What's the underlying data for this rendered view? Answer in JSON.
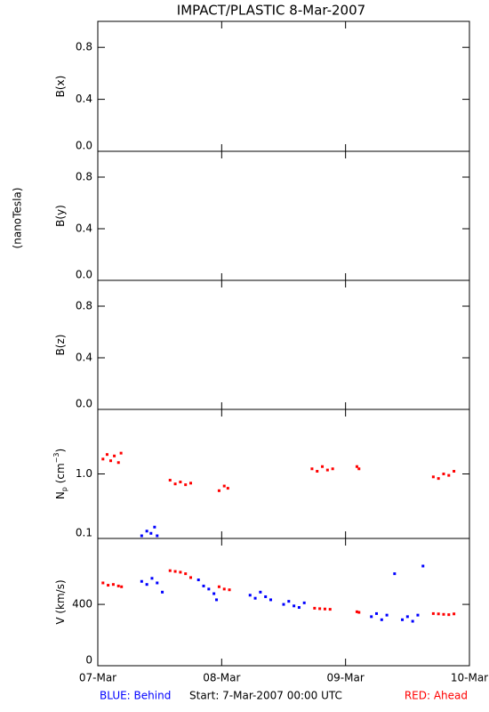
{
  "header": {
    "title": "IMPACT/PLASTIC    8-Mar-2007",
    "unit_label": "(nanoTesla)"
  },
  "footer": {
    "start": "Start:  7-Mar-2007 00:00 UTC"
  },
  "chart_data": [
    {
      "type": "scatter",
      "ylabel_parts": [
        "B(x)"
      ],
      "ylim": [
        0,
        1
      ],
      "yticks": [
        {
          "value": 0,
          "label": "0.0"
        },
        0.4,
        0.8
      ],
      "xlim": [
        0,
        72
      ],
      "series": []
    },
    {
      "type": "scatter",
      "ylabel_parts": [
        "B(y)"
      ],
      "ylim": [
        0,
        1
      ],
      "yticks": [
        {
          "value": 0,
          "label": "0.0"
        },
        0.4,
        0.8
      ],
      "xlim": [
        0,
        72
      ],
      "series": []
    },
    {
      "type": "scatter",
      "ylabel_parts": [
        "B(z)"
      ],
      "ylim": [
        0,
        1
      ],
      "yticks": [
        {
          "value": 0,
          "label": "0.0"
        },
        0.4,
        0.8
      ],
      "xlim": [
        0,
        72
      ],
      "series": []
    },
    {
      "type": "scatter",
      "ylabel_parts": [
        "N",
        "p",
        " (cm",
        "−3",
        ")"
      ],
      "log_scale": true,
      "ylim": [
        0.1,
        10
      ],
      "yticks": [
        0.1,
        {
          "value": 1,
          "label": "1.0"
        }
      ],
      "xlim": [
        0,
        72
      ],
      "series": [
        {
          "color": "#ff0000",
          "x": [
            1,
            1.8,
            2.5,
            3.2,
            4,
            4.5,
            14,
            15,
            16,
            17,
            18,
            23.5,
            24.5,
            25.2,
            41.5,
            42.5,
            43.5,
            44.5,
            45.5,
            50.2,
            50.6,
            65,
            66,
            67,
            68,
            69
          ],
          "values": [
            1.7,
            2.0,
            1.6,
            1.9,
            1.5,
            2.1,
            0.8,
            0.7,
            0.75,
            0.68,
            0.72,
            0.55,
            0.65,
            0.6,
            1.2,
            1.1,
            1.3,
            1.15,
            1.2,
            1.3,
            1.2,
            0.9,
            0.85,
            1.0,
            0.95,
            1.1
          ]
        },
        {
          "color": "#0000ff",
          "x": [
            8.5,
            9.5,
            10.3,
            11,
            11.5
          ],
          "values": [
            0.11,
            0.13,
            0.12,
            0.15,
            0.11
          ]
        }
      ]
    },
    {
      "type": "scatter",
      "ylabel_parts": [
        "V (km/s)"
      ],
      "ylim": [
        0,
        830
      ],
      "yticks": [
        0,
        400
      ],
      "xlim": [
        0,
        72
      ],
      "xticks": [
        {
          "value": 0,
          "label": "07-Mar"
        },
        {
          "value": 24,
          "label": "08-Mar"
        },
        {
          "value": 48,
          "label": "09-Mar"
        },
        {
          "value": 72,
          "label": "10-Mar"
        }
      ],
      "series": [
        {
          "name": "RED: Ahead",
          "color": "#ff0000",
          "x": [
            1,
            2,
            3,
            4,
            4.6,
            14,
            15,
            16,
            17,
            18,
            23.5,
            24.5,
            25.5,
            42,
            43,
            44,
            45,
            50.2,
            50.6,
            65,
            66,
            67,
            68,
            69
          ],
          "values": [
            540,
            525,
            530,
            520,
            515,
            620,
            615,
            610,
            600,
            575,
            515,
            500,
            495,
            375,
            372,
            370,
            368,
            352,
            348,
            340,
            338,
            335,
            333,
            338
          ]
        },
        {
          "name": "BLUE: Behind",
          "color": "#0000ff",
          "x": [
            8.5,
            9.5,
            10.5,
            11.5,
            12.5,
            19.5,
            20.5,
            21.5,
            22.5,
            23,
            29.5,
            30.5,
            31.5,
            32.5,
            33.5,
            36,
            37,
            38,
            39,
            40,
            53,
            54,
            55,
            56,
            57.5,
            59,
            60,
            61,
            62,
            63
          ],
          "values": [
            550,
            530,
            570,
            540,
            480,
            560,
            520,
            500,
            470,
            430,
            460,
            440,
            480,
            450,
            430,
            400,
            420,
            390,
            380,
            410,
            320,
            340,
            300,
            330,
            600,
            300,
            320,
            290,
            330,
            650
          ]
        }
      ]
    }
  ]
}
